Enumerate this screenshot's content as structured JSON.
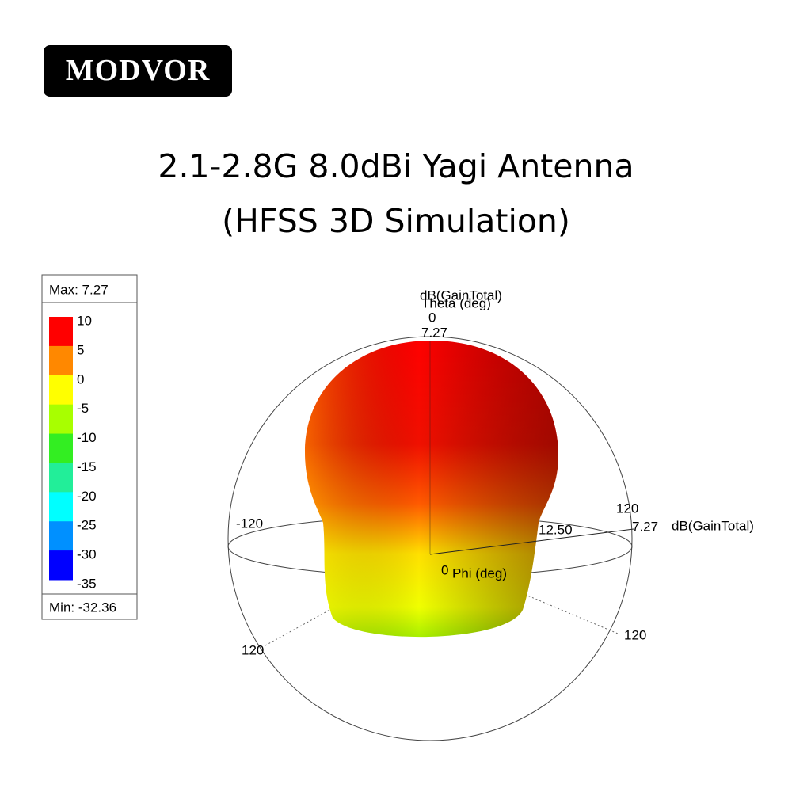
{
  "brand": "MODVOR",
  "title": {
    "line1": "2.1-2.8G 8.0dBi Yagi Antenna",
    "line2": "(HFSS 3D Simulation)"
  },
  "legend": {
    "max": "Max: 7.27",
    "min": "Min: -32.36",
    "labels": [
      "10",
      "5",
      "0",
      "-5",
      "-10",
      "-15",
      "-20",
      "-25",
      "-30",
      "-35"
    ],
    "band_colors": [
      "#ff0000",
      "#ff8800",
      "#ffff00",
      "#a8ff00",
      "#33ee22",
      "#22ee99",
      "#00ffff",
      "#0090ff",
      "#0000ff"
    ]
  },
  "plot": {
    "top_quantity": "dB(GainTotal)",
    "theta_label": "Theta (deg)",
    "theta_zero": "0",
    "top_max": "7.27",
    "right_120": "120",
    "left_minus_120": "-120",
    "mid_value": "12.50",
    "right_max": "7.27",
    "right_quantity": "dB(GainTotal)",
    "phi_zero": "0",
    "phi_label": "Phi (deg)",
    "bottom_right_120": "120",
    "bottom_left_120": "120"
  }
}
